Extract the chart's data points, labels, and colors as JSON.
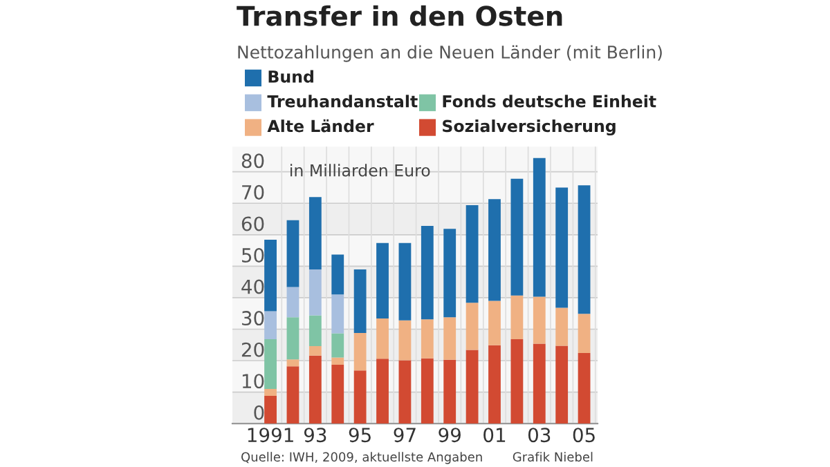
{
  "chart_data": {
    "type": "bar",
    "stacked": true,
    "title": "Transfer in den Osten",
    "subtitle": "Nettozahlungen an die Neuen Länder (mit Berlin)",
    "categories": [
      "1991",
      null,
      "93",
      null,
      "95",
      null,
      "97",
      null,
      "99",
      null,
      "01",
      null,
      "03",
      null,
      "05"
    ],
    "series": [
      {
        "name": "Sozialversicherung",
        "color": "#d24a32",
        "values": [
          8.8,
          18.2,
          21.6,
          18.7,
          16.9,
          20.6,
          20.1,
          20.7,
          20.3,
          23.4,
          24.9,
          26.8,
          25.4,
          24.7,
          22.4
        ]
      },
      {
        "name": "Alte Länder",
        "color": "#f0b183",
        "values": [
          2.2,
          2.2,
          3.0,
          2.3,
          11.9,
          12.8,
          12.7,
          12.4,
          13.5,
          15.0,
          14.1,
          13.9,
          14.9,
          12.1,
          12.5
        ]
      },
      {
        "name": "Fonds deutsche Einheit",
        "color": "#7fc4a5",
        "values": [
          15.8,
          13.4,
          9.8,
          7.7,
          null,
          null,
          null,
          null,
          null,
          null,
          null,
          null,
          null,
          null,
          null
        ]
      },
      {
        "name": "Treuhandanstalt",
        "color": "#a8bfdf",
        "values": [
          8.9,
          9.6,
          14.6,
          12.3,
          null,
          null,
          null,
          null,
          null,
          null,
          null,
          null,
          null,
          null,
          null
        ]
      },
      {
        "name": "Bund",
        "color": "#1f6fad",
        "values": [
          22.7,
          21.2,
          23.0,
          12.7,
          20.2,
          24.0,
          24.6,
          29.7,
          28.1,
          31.0,
          32.3,
          37.1,
          44.1,
          38.2,
          40.8
        ]
      }
    ],
    "ylim": [
      0,
      88
    ],
    "yticks": [
      0,
      10,
      20,
      30,
      40,
      50,
      60,
      70,
      80
    ],
    "grid": true,
    "legend": "top",
    "annotations": [
      "in Milliarden Euro",
      "Quelle: IWH, 2009, aktuellste Angaben",
      "Grafik Niebel"
    ]
  }
}
